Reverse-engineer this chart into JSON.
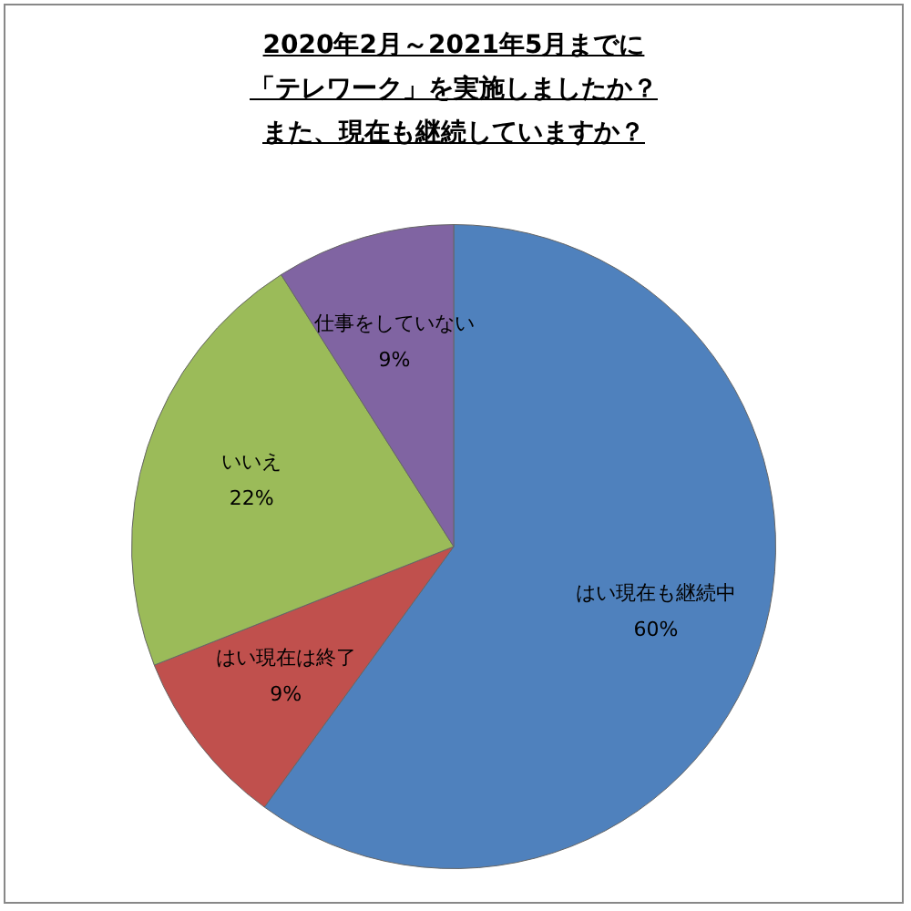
{
  "chart_data": {
    "type": "pie",
    "title": "2020年2月～2021年5月までに「テレワーク」を実施しましたか？また、現在も継続していますか？",
    "categories": [
      "はい現在も継続中",
      "はい現在は終了",
      "いいえ",
      "仕事をしていない"
    ],
    "values": [
      60,
      9,
      22,
      9
    ],
    "colors": [
      "#4f81bd",
      "#c0504d",
      "#9bbb59",
      "#8064a2"
    ],
    "value_labels": [
      "60%",
      "9%",
      "22%",
      "9%"
    ],
    "legend": false
  }
}
